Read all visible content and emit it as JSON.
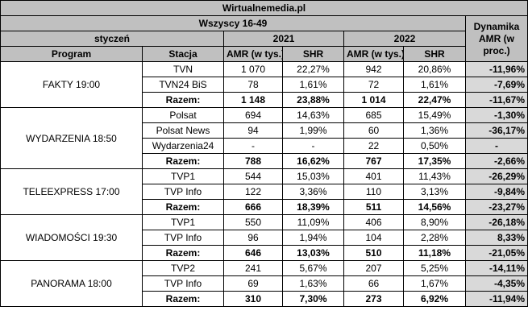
{
  "title": "Wirtualnemedia.pl",
  "subtitle": "Wszyscy 16-49",
  "period_label": "styczeń",
  "year_a": "2021",
  "year_b": "2022",
  "dynamics_header": "Dynamika AMR (w proc.)",
  "col_program": "Program",
  "col_station": "Stacja",
  "col_amr_a": "AMR (w tys.)",
  "col_shr_a": "SHR",
  "col_amr_b": "AMR (w tys.)",
  "col_shr_b": "SHR",
  "groups": [
    {
      "program": "FAKTY 19:00",
      "rows": [
        {
          "station": "TVN",
          "amr21": "1 070",
          "shr21": "22,27%",
          "amr22": "942",
          "shr22": "20,86%",
          "dyn": "-11,96%"
        },
        {
          "station": "TVN24 BiS",
          "amr21": "78",
          "shr21": "1,61%",
          "amr22": "72",
          "shr22": "1,61%",
          "dyn": "-7,69%"
        },
        {
          "station": "Razem:",
          "amr21": "1 148",
          "shr21": "23,88%",
          "amr22": "1 014",
          "shr22": "22,47%",
          "dyn": "-11,67%"
        }
      ]
    },
    {
      "program": "WYDARZENIA 18:50",
      "rows": [
        {
          "station": "Polsat",
          "amr21": "694",
          "shr21": "14,63%",
          "amr22": "685",
          "shr22": "15,49%",
          "dyn": "-1,30%"
        },
        {
          "station": "Polsat News",
          "amr21": "94",
          "shr21": "1,99%",
          "amr22": "60",
          "shr22": "1,36%",
          "dyn": "-36,17%"
        },
        {
          "station": "Wydarzenia24",
          "amr21": "-",
          "shr21": "-",
          "amr22": "22",
          "shr22": "0,50%",
          "dyn": "-"
        },
        {
          "station": "Razem:",
          "amr21": "788",
          "shr21": "16,62%",
          "amr22": "767",
          "shr22": "17,35%",
          "dyn": "-2,66%"
        }
      ]
    },
    {
      "program": "TELEEXPRESS 17:00",
      "rows": [
        {
          "station": "TVP1",
          "amr21": "544",
          "shr21": "15,03%",
          "amr22": "401",
          "shr22": "11,43%",
          "dyn": "-26,29%"
        },
        {
          "station": "TVP Info",
          "amr21": "122",
          "shr21": "3,36%",
          "amr22": "110",
          "shr22": "3,13%",
          "dyn": "-9,84%"
        },
        {
          "station": "Razem:",
          "amr21": "666",
          "shr21": "18,39%",
          "amr22": "511",
          "shr22": "14,56%",
          "dyn": "-23,27%"
        }
      ]
    },
    {
      "program": "WIADOMOŚCI 19:30",
      "rows": [
        {
          "station": "TVP1",
          "amr21": "550",
          "shr21": "11,09%",
          "amr22": "406",
          "shr22": "8,90%",
          "dyn": "-26,18%"
        },
        {
          "station": "TVP Info",
          "amr21": "96",
          "shr21": "1,94%",
          "amr22": "104",
          "shr22": "2,28%",
          "dyn": "8,33%"
        },
        {
          "station": "Razem:",
          "amr21": "646",
          "shr21": "13,03%",
          "amr22": "510",
          "shr22": "11,18%",
          "dyn": "-21,05%"
        }
      ]
    },
    {
      "program": "PANORAMA 18:00",
      "rows": [
        {
          "station": "TVP2",
          "amr21": "241",
          "shr21": "5,67%",
          "amr22": "207",
          "shr22": "5,25%",
          "dyn": "-14,11%"
        },
        {
          "station": "TVP Info",
          "amr21": "69",
          "shr21": "1,63%",
          "amr22": "66",
          "shr22": "1,67%",
          "dyn": "-4,35%"
        },
        {
          "station": "Razem:",
          "amr21": "310",
          "shr21": "7,30%",
          "amr22": "273",
          "shr22": "6,92%",
          "dyn": "-11,94%"
        }
      ]
    }
  ]
}
